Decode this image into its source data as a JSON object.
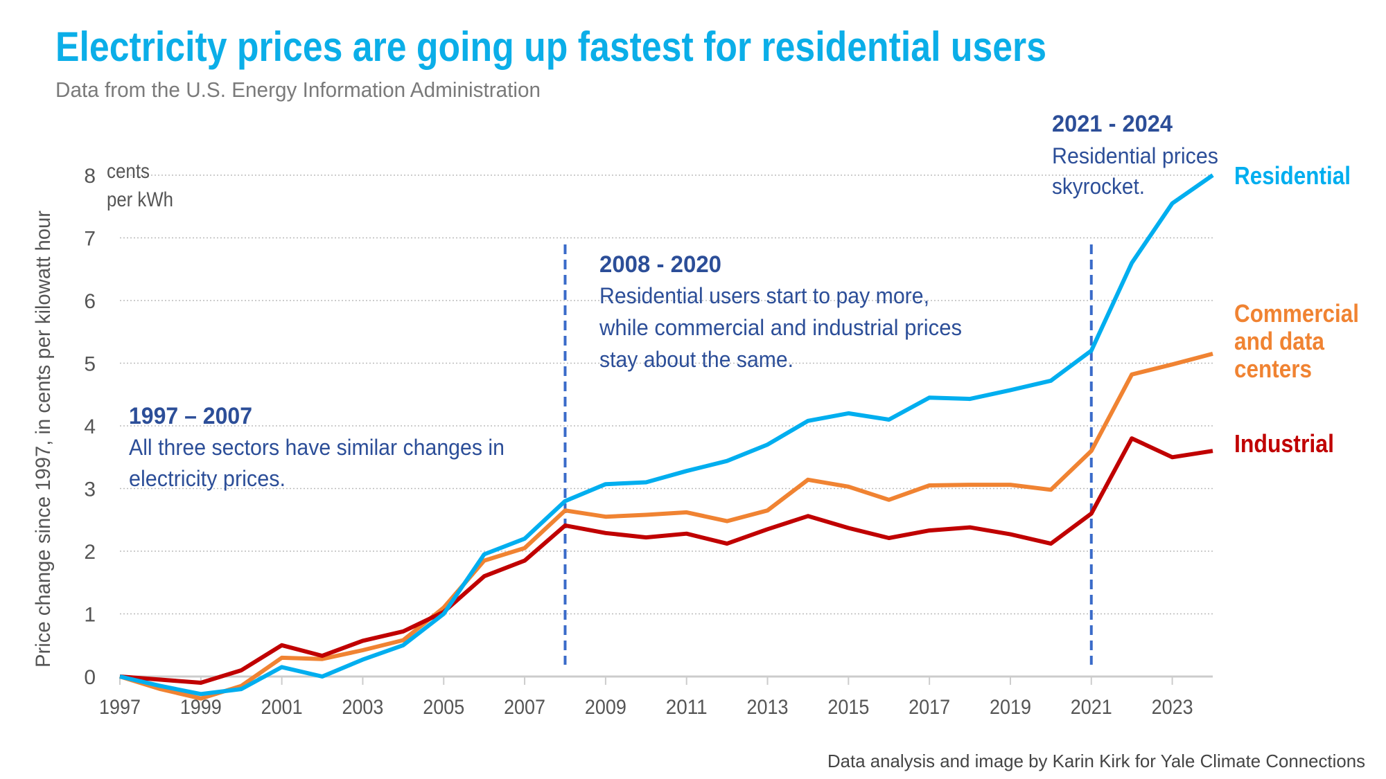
{
  "title": "Electricity prices are going up fastest for residential users",
  "subtitle": "Data from the U.S. Energy Information Administration",
  "credit": "Data analysis and image by Karin Kirk for Yale Climate Connections",
  "colors": {
    "residential": "#00AEEF",
    "commercial": "#F08332",
    "industrial": "#C00000",
    "annotation": "#2C4E98",
    "divider": "#3A6BC9"
  },
  "annotations": [
    {
      "heading": "1997 – 2007",
      "lines": [
        "All three sectors have similar changes in",
        "electricity prices."
      ]
    },
    {
      "heading": "2008 - 2020",
      "lines": [
        "Residential users start to pay more,",
        "while commercial and industrial prices",
        "stay about the same."
      ]
    },
    {
      "heading": "2021 - 2024",
      "lines": [
        "Residential prices",
        "skyrocket."
      ]
    }
  ],
  "chart_data": {
    "type": "line",
    "title": "Electricity prices are going up fastest for residential users",
    "subtitle": "Data from the U.S. Energy Information Administration",
    "ylabel": "Price change since 1997, in cents per kilowatt hour",
    "yunit": [
      "cents",
      "per kWh"
    ],
    "xlabel": "",
    "x": [
      1997,
      1998,
      1999,
      2000,
      2001,
      2002,
      2003,
      2004,
      2005,
      2006,
      2007,
      2008,
      2009,
      2010,
      2011,
      2012,
      2013,
      2014,
      2015,
      2016,
      2017,
      2018,
      2019,
      2020,
      2021,
      2022,
      2023,
      2024
    ],
    "xticks": [
      "1997",
      "1999",
      "2001",
      "2003",
      "2005",
      "2007",
      "2009",
      "2011",
      "2013",
      "2015",
      "2017",
      "2019",
      "2021",
      "2023"
    ],
    "yticks": [
      "0",
      "1",
      "2",
      "3",
      "4",
      "5",
      "6",
      "7",
      "8"
    ],
    "xlim": [
      1997,
      2024
    ],
    "ylim": [
      0,
      8
    ],
    "grid": "horizontal dotted",
    "legend": "direct labels at right",
    "vertical_markers": [
      2008,
      2021
    ],
    "series": [
      {
        "name": "Residential",
        "label_lines": [
          "Residential"
        ],
        "color": "#00AEEF",
        "values": [
          0,
          -0.15,
          -0.28,
          -0.2,
          0.15,
          0.0,
          0.27,
          0.5,
          1.0,
          1.95,
          2.2,
          2.8,
          3.07,
          3.1,
          3.28,
          3.44,
          3.7,
          4.08,
          4.2,
          4.1,
          4.45,
          4.43,
          4.57,
          4.72,
          5.2,
          6.6,
          7.55,
          8.0
        ]
      },
      {
        "name": "Commercial and data centers",
        "label_lines": [
          "Commercial",
          "and data",
          "centers"
        ],
        "color": "#F08332",
        "values": [
          0,
          -0.2,
          -0.35,
          -0.15,
          0.3,
          0.28,
          0.42,
          0.58,
          1.1,
          1.85,
          2.05,
          2.65,
          2.55,
          2.58,
          2.62,
          2.48,
          2.65,
          3.14,
          3.03,
          2.82,
          3.05,
          3.06,
          3.06,
          2.98,
          3.6,
          4.82,
          4.98,
          5.15
        ]
      },
      {
        "name": "Industrial",
        "label_lines": [
          "Industrial"
        ],
        "color": "#C00000",
        "values": [
          0,
          -0.05,
          -0.1,
          0.1,
          0.5,
          0.33,
          0.57,
          0.72,
          1.03,
          1.6,
          1.85,
          2.41,
          2.29,
          2.22,
          2.28,
          2.12,
          2.35,
          2.56,
          2.37,
          2.21,
          2.33,
          2.38,
          2.27,
          2.12,
          2.6,
          3.8,
          3.5,
          3.6
        ]
      }
    ]
  }
}
